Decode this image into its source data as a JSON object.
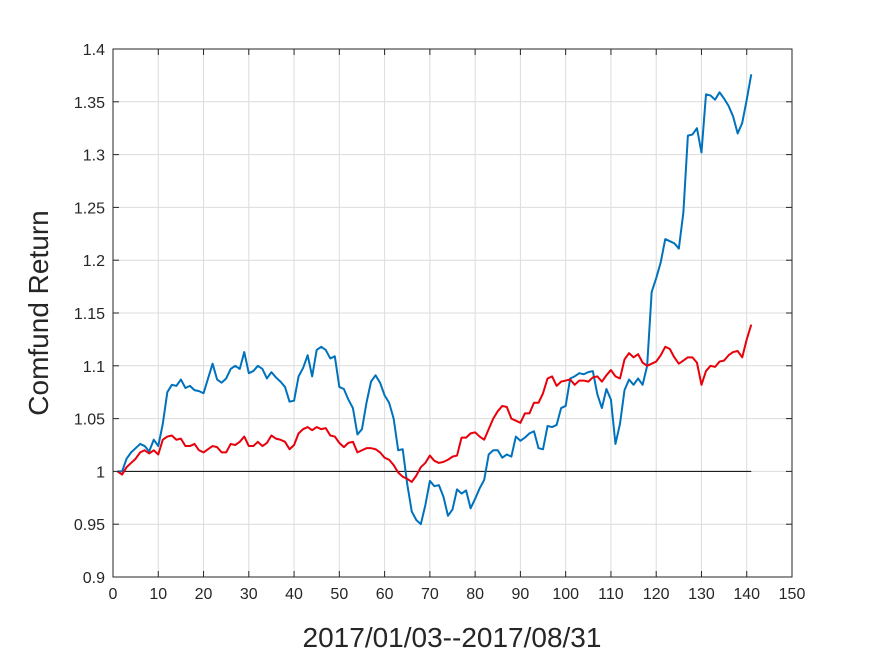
{
  "chart_data": {
    "type": "line",
    "title": "",
    "xlabel": "2017/01/03--2017/08/31",
    "ylabel": "Comfund Return",
    "xlim": [
      0,
      150
    ],
    "ylim": [
      0.9,
      1.4
    ],
    "xticks": [
      0,
      10,
      20,
      30,
      40,
      50,
      60,
      70,
      80,
      90,
      100,
      110,
      120,
      130,
      140,
      150
    ],
    "xtick_labels": [
      "0",
      "10",
      "20",
      "30",
      "40",
      "50",
      "60",
      "70",
      "80",
      "90",
      "100",
      "110",
      "120",
      "130",
      "140",
      "150"
    ],
    "yticks": [
      0.9,
      0.95,
      1.0,
      1.05,
      1.1,
      1.15,
      1.2,
      1.25,
      1.3,
      1.35,
      1.4
    ],
    "ytick_labels": [
      "0.9",
      "0.95",
      "1",
      "1.05",
      "1.1",
      "1.15",
      "1.2",
      "1.25",
      "1.3",
      "1.35",
      "1.4"
    ],
    "grid": true,
    "reference_line": {
      "y": 1.0,
      "x": [
        1,
        141
      ],
      "color": "#000000"
    },
    "series": [
      {
        "color": "#0072BD",
        "points": [
          [
            1,
            1.0
          ],
          [
            2,
            1.0
          ],
          [
            3,
            1.012
          ],
          [
            4,
            1.018
          ],
          [
            5,
            1.022
          ],
          [
            6,
            1.026
          ],
          [
            7,
            1.024
          ],
          [
            8,
            1.019
          ],
          [
            9,
            1.03
          ],
          [
            10,
            1.024
          ],
          [
            11,
            1.045
          ],
          [
            12,
            1.075
          ],
          [
            13,
            1.082
          ],
          [
            14,
            1.081
          ],
          [
            15,
            1.087
          ],
          [
            16,
            1.079
          ],
          [
            17,
            1.081
          ],
          [
            18,
            1.077
          ],
          [
            19,
            1.076
          ],
          [
            20,
            1.074
          ],
          [
            21,
            1.088
          ],
          [
            22,
            1.102
          ],
          [
            23,
            1.087
          ],
          [
            24,
            1.084
          ],
          [
            25,
            1.088
          ],
          [
            26,
            1.097
          ],
          [
            27,
            1.1
          ],
          [
            28,
            1.097
          ],
          [
            29,
            1.113
          ],
          [
            30,
            1.093
          ],
          [
            31,
            1.095
          ],
          [
            32,
            1.1
          ],
          [
            33,
            1.097
          ],
          [
            34,
            1.088
          ],
          [
            35,
            1.094
          ],
          [
            36,
            1.089
          ],
          [
            37,
            1.085
          ],
          [
            38,
            1.08
          ],
          [
            39,
            1.066
          ],
          [
            40,
            1.067
          ],
          [
            41,
            1.09
          ],
          [
            42,
            1.098
          ],
          [
            43,
            1.11
          ],
          [
            44,
            1.09
          ],
          [
            45,
            1.115
          ],
          [
            46,
            1.118
          ],
          [
            47,
            1.115
          ],
          [
            48,
            1.107
          ],
          [
            49,
            1.109
          ],
          [
            50,
            1.08
          ],
          [
            51,
            1.078
          ],
          [
            52,
            1.068
          ],
          [
            53,
            1.06
          ],
          [
            54,
            1.035
          ],
          [
            55,
            1.04
          ],
          [
            56,
            1.065
          ],
          [
            57,
            1.085
          ],
          [
            58,
            1.091
          ],
          [
            59,
            1.084
          ],
          [
            60,
            1.072
          ],
          [
            61,
            1.065
          ],
          [
            62,
            1.05
          ],
          [
            63,
            1.02
          ],
          [
            64,
            1.021
          ],
          [
            65,
            0.988
          ],
          [
            66,
            0.962
          ],
          [
            67,
            0.954
          ],
          [
            68,
            0.95
          ],
          [
            69,
            0.968
          ],
          [
            70,
            0.991
          ],
          [
            71,
            0.986
          ],
          [
            72,
            0.987
          ],
          [
            73,
            0.976
          ],
          [
            74,
            0.958
          ],
          [
            75,
            0.964
          ],
          [
            76,
            0.983
          ],
          [
            77,
            0.979
          ],
          [
            78,
            0.982
          ],
          [
            79,
            0.965
          ],
          [
            80,
            0.974
          ],
          [
            81,
            0.984
          ],
          [
            82,
            0.992
          ],
          [
            83,
            1.016
          ],
          [
            84,
            1.02
          ],
          [
            85,
            1.02
          ],
          [
            86,
            1.013
          ],
          [
            87,
            1.016
          ],
          [
            88,
            1.014
          ],
          [
            89,
            1.033
          ],
          [
            90,
            1.029
          ],
          [
            91,
            1.032
          ],
          [
            92,
            1.036
          ],
          [
            93,
            1.038
          ],
          [
            94,
            1.022
          ],
          [
            95,
            1.021
          ],
          [
            96,
            1.043
          ],
          [
            97,
            1.042
          ],
          [
            98,
            1.044
          ],
          [
            99,
            1.06
          ],
          [
            100,
            1.062
          ],
          [
            101,
            1.088
          ],
          [
            102,
            1.09
          ],
          [
            103,
            1.093
          ],
          [
            104,
            1.092
          ],
          [
            105,
            1.094
          ],
          [
            106,
            1.095
          ],
          [
            107,
            1.073
          ],
          [
            108,
            1.06
          ],
          [
            109,
            1.078
          ],
          [
            110,
            1.068
          ],
          [
            111,
            1.026
          ],
          [
            112,
            1.045
          ],
          [
            113,
            1.077
          ],
          [
            114,
            1.087
          ],
          [
            115,
            1.082
          ],
          [
            116,
            1.088
          ],
          [
            117,
            1.082
          ],
          [
            118,
            1.1
          ],
          [
            119,
            1.17
          ],
          [
            120,
            1.183
          ],
          [
            121,
            1.198
          ],
          [
            122,
            1.22
          ],
          [
            123,
            1.218
          ],
          [
            124,
            1.216
          ],
          [
            125,
            1.211
          ],
          [
            126,
            1.245
          ],
          [
            127,
            1.318
          ],
          [
            128,
            1.319
          ],
          [
            129,
            1.325
          ],
          [
            130,
            1.302
          ],
          [
            131,
            1.357
          ],
          [
            132,
            1.356
          ],
          [
            133,
            1.352
          ],
          [
            134,
            1.359
          ],
          [
            135,
            1.353
          ],
          [
            136,
            1.346
          ],
          [
            137,
            1.336
          ],
          [
            138,
            1.32
          ],
          [
            139,
            1.33
          ],
          [
            140,
            1.352
          ],
          [
            141,
            1.376
          ]
        ]
      },
      {
        "color": "#E8000B",
        "points": [
          [
            1,
            1.0
          ],
          [
            2,
            0.997
          ],
          [
            3,
            1.004
          ],
          [
            4,
            1.008
          ],
          [
            5,
            1.012
          ],
          [
            6,
            1.018
          ],
          [
            7,
            1.02
          ],
          [
            8,
            1.017
          ],
          [
            9,
            1.02
          ],
          [
            10,
            1.016
          ],
          [
            11,
            1.03
          ],
          [
            12,
            1.033
          ],
          [
            13,
            1.034
          ],
          [
            14,
            1.03
          ],
          [
            15,
            1.031
          ],
          [
            16,
            1.024
          ],
          [
            17,
            1.024
          ],
          [
            18,
            1.026
          ],
          [
            19,
            1.02
          ],
          [
            20,
            1.018
          ],
          [
            21,
            1.021
          ],
          [
            22,
            1.024
          ],
          [
            23,
            1.023
          ],
          [
            24,
            1.018
          ],
          [
            25,
            1.018
          ],
          [
            26,
            1.026
          ],
          [
            27,
            1.025
          ],
          [
            28,
            1.028
          ],
          [
            29,
            1.033
          ],
          [
            30,
            1.024
          ],
          [
            31,
            1.024
          ],
          [
            32,
            1.028
          ],
          [
            33,
            1.024
          ],
          [
            34,
            1.027
          ],
          [
            35,
            1.034
          ],
          [
            36,
            1.031
          ],
          [
            37,
            1.03
          ],
          [
            38,
            1.028
          ],
          [
            39,
            1.021
          ],
          [
            40,
            1.025
          ],
          [
            41,
            1.036
          ],
          [
            42,
            1.04
          ],
          [
            43,
            1.042
          ],
          [
            44,
            1.039
          ],
          [
            45,
            1.042
          ],
          [
            46,
            1.04
          ],
          [
            47,
            1.041
          ],
          [
            48,
            1.034
          ],
          [
            49,
            1.033
          ],
          [
            50,
            1.027
          ],
          [
            51,
            1.023
          ],
          [
            52,
            1.027
          ],
          [
            53,
            1.028
          ],
          [
            54,
            1.018
          ],
          [
            55,
            1.02
          ],
          [
            56,
            1.022
          ],
          [
            57,
            1.022
          ],
          [
            58,
            1.021
          ],
          [
            59,
            1.018
          ],
          [
            60,
            1.013
          ],
          [
            61,
            1.011
          ],
          [
            62,
            1.006
          ],
          [
            63,
            0.999
          ],
          [
            64,
            0.995
          ],
          [
            65,
            0.993
          ],
          [
            66,
            0.99
          ],
          [
            67,
            0.996
          ],
          [
            68,
            1.004
          ],
          [
            69,
            1.008
          ],
          [
            70,
            1.015
          ],
          [
            71,
            1.01
          ],
          [
            72,
            1.008
          ],
          [
            73,
            1.009
          ],
          [
            74,
            1.011
          ],
          [
            75,
            1.014
          ],
          [
            76,
            1.015
          ],
          [
            77,
            1.032
          ],
          [
            78,
            1.032
          ],
          [
            79,
            1.036
          ],
          [
            80,
            1.037
          ],
          [
            81,
            1.033
          ],
          [
            82,
            1.03
          ],
          [
            83,
            1.04
          ],
          [
            84,
            1.05
          ],
          [
            85,
            1.057
          ],
          [
            86,
            1.062
          ],
          [
            87,
            1.061
          ],
          [
            88,
            1.05
          ],
          [
            89,
            1.048
          ],
          [
            90,
            1.046
          ],
          [
            91,
            1.055
          ],
          [
            92,
            1.055
          ],
          [
            93,
            1.065
          ],
          [
            94,
            1.065
          ],
          [
            95,
            1.074
          ],
          [
            96,
            1.088
          ],
          [
            97,
            1.09
          ],
          [
            98,
            1.081
          ],
          [
            99,
            1.085
          ],
          [
            100,
            1.086
          ],
          [
            101,
            1.087
          ],
          [
            102,
            1.082
          ],
          [
            103,
            1.086
          ],
          [
            104,
            1.086
          ],
          [
            105,
            1.085
          ],
          [
            106,
            1.089
          ],
          [
            107,
            1.09
          ],
          [
            108,
            1.085
          ],
          [
            109,
            1.091
          ],
          [
            110,
            1.096
          ],
          [
            111,
            1.09
          ],
          [
            112,
            1.088
          ],
          [
            113,
            1.106
          ],
          [
            114,
            1.112
          ],
          [
            115,
            1.108
          ],
          [
            116,
            1.111
          ],
          [
            117,
            1.103
          ],
          [
            118,
            1.1
          ],
          [
            119,
            1.102
          ],
          [
            120,
            1.104
          ],
          [
            121,
            1.11
          ],
          [
            122,
            1.118
          ],
          [
            123,
            1.116
          ],
          [
            124,
            1.108
          ],
          [
            125,
            1.102
          ],
          [
            126,
            1.105
          ],
          [
            127,
            1.108
          ],
          [
            128,
            1.108
          ],
          [
            129,
            1.103
          ],
          [
            130,
            1.082
          ],
          [
            131,
            1.095
          ],
          [
            132,
            1.1
          ],
          [
            133,
            1.099
          ],
          [
            134,
            1.104
          ],
          [
            135,
            1.105
          ],
          [
            136,
            1.11
          ],
          [
            137,
            1.113
          ],
          [
            138,
            1.114
          ],
          [
            139,
            1.108
          ],
          [
            140,
            1.125
          ],
          [
            141,
            1.139
          ]
        ]
      }
    ]
  }
}
